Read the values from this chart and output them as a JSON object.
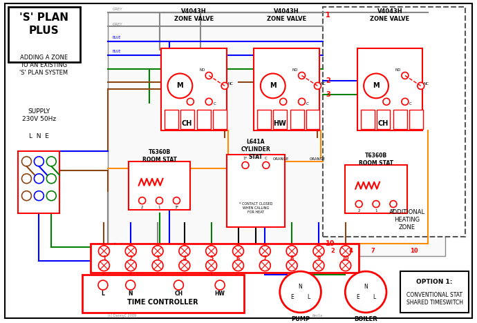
{
  "bg_color": "#ffffff",
  "colors": {
    "red": "#ff0000",
    "blue": "#0000ff",
    "green": "#008000",
    "orange": "#ff8c00",
    "brown": "#8B4513",
    "grey": "#888888",
    "black": "#000000"
  },
  "plan_title": "'S' PLAN\nPLUS",
  "plan_subtitle": "ADDING A ZONE\nTO AN EXISTING\n'S' PLAN SYSTEM",
  "supply_text": "SUPPLY\n230V 50Hz",
  "lne_label": "L  N  E",
  "copyright": "(c) DannyC 2009",
  "rev": "Rev1a"
}
